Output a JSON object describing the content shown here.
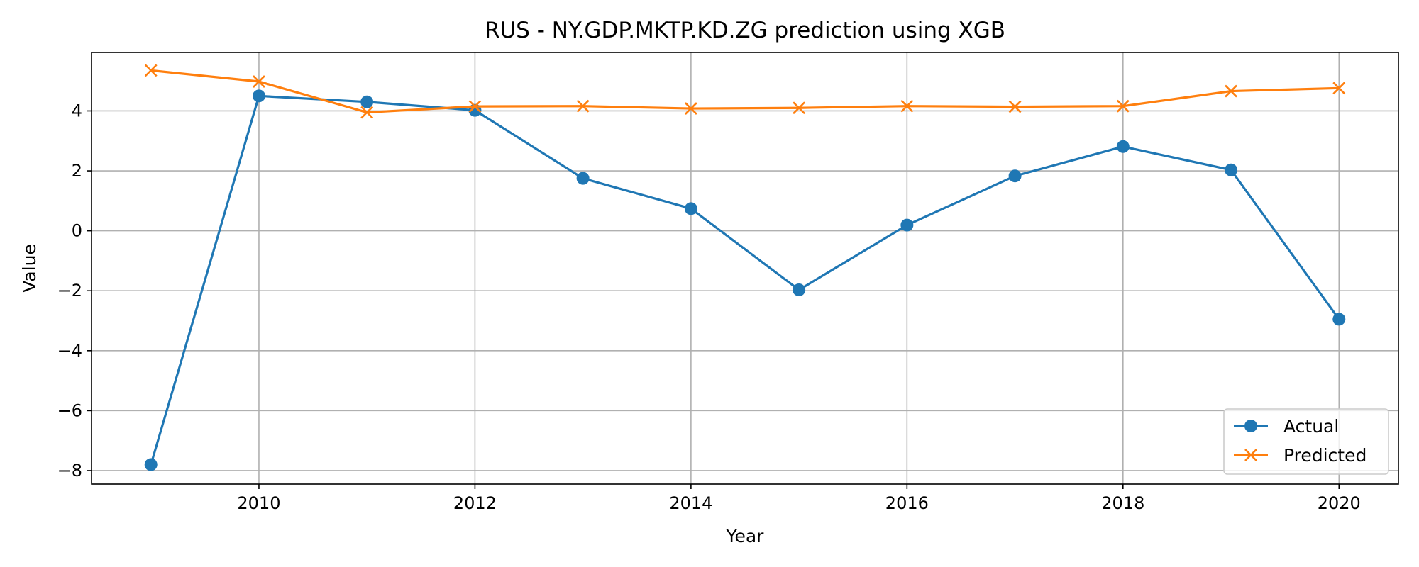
{
  "chart_data": {
    "type": "line",
    "title": "RUS - NY.GDP.MKTP.KD.ZG prediction using XGB",
    "xlabel": "Year",
    "ylabel": "Value",
    "x": [
      2009,
      2010,
      2011,
      2012,
      2013,
      2014,
      2015,
      2016,
      2017,
      2018,
      2019,
      2020
    ],
    "xlim": [
      2008.45,
      2020.55
    ],
    "ylim": [
      -8.45,
      5.95
    ],
    "xticks": [
      2010,
      2012,
      2014,
      2016,
      2018,
      2020
    ],
    "yticks": [
      -8,
      -6,
      -4,
      -2,
      0,
      2,
      4
    ],
    "grid": true,
    "legend_position": "lower-right",
    "series": [
      {
        "name": "Actual",
        "color": "#1f77b4",
        "marker": "circle",
        "values": [
          -7.8,
          4.5,
          4.3,
          4.02,
          1.75,
          0.74,
          -1.97,
          0.19,
          1.83,
          2.81,
          2.03,
          -2.95
        ]
      },
      {
        "name": "Predicted",
        "color": "#ff7f0e",
        "marker": "x",
        "values": [
          5.35,
          4.98,
          3.95,
          4.15,
          4.16,
          4.08,
          4.1,
          4.16,
          4.14,
          4.16,
          4.66,
          4.76
        ]
      }
    ]
  }
}
